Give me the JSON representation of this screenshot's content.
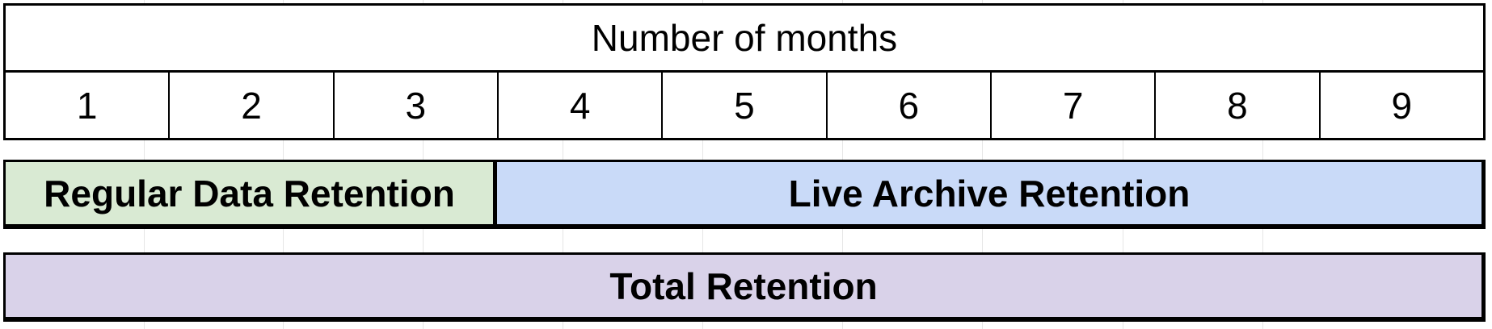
{
  "header": {
    "title": "Number of months"
  },
  "months": [
    "1",
    "2",
    "3",
    "4",
    "5",
    "6",
    "7",
    "8",
    "9"
  ],
  "retention": {
    "regular": {
      "label": "Regular Data Retention",
      "months_covered": 3,
      "color": "#d9ead3"
    },
    "archive": {
      "label": "Live Archive Retention",
      "months_covered": 6,
      "color": "#c9daf8"
    },
    "total": {
      "label": "Total Retention",
      "months_covered": 9,
      "color": "#d9d2e9"
    }
  }
}
